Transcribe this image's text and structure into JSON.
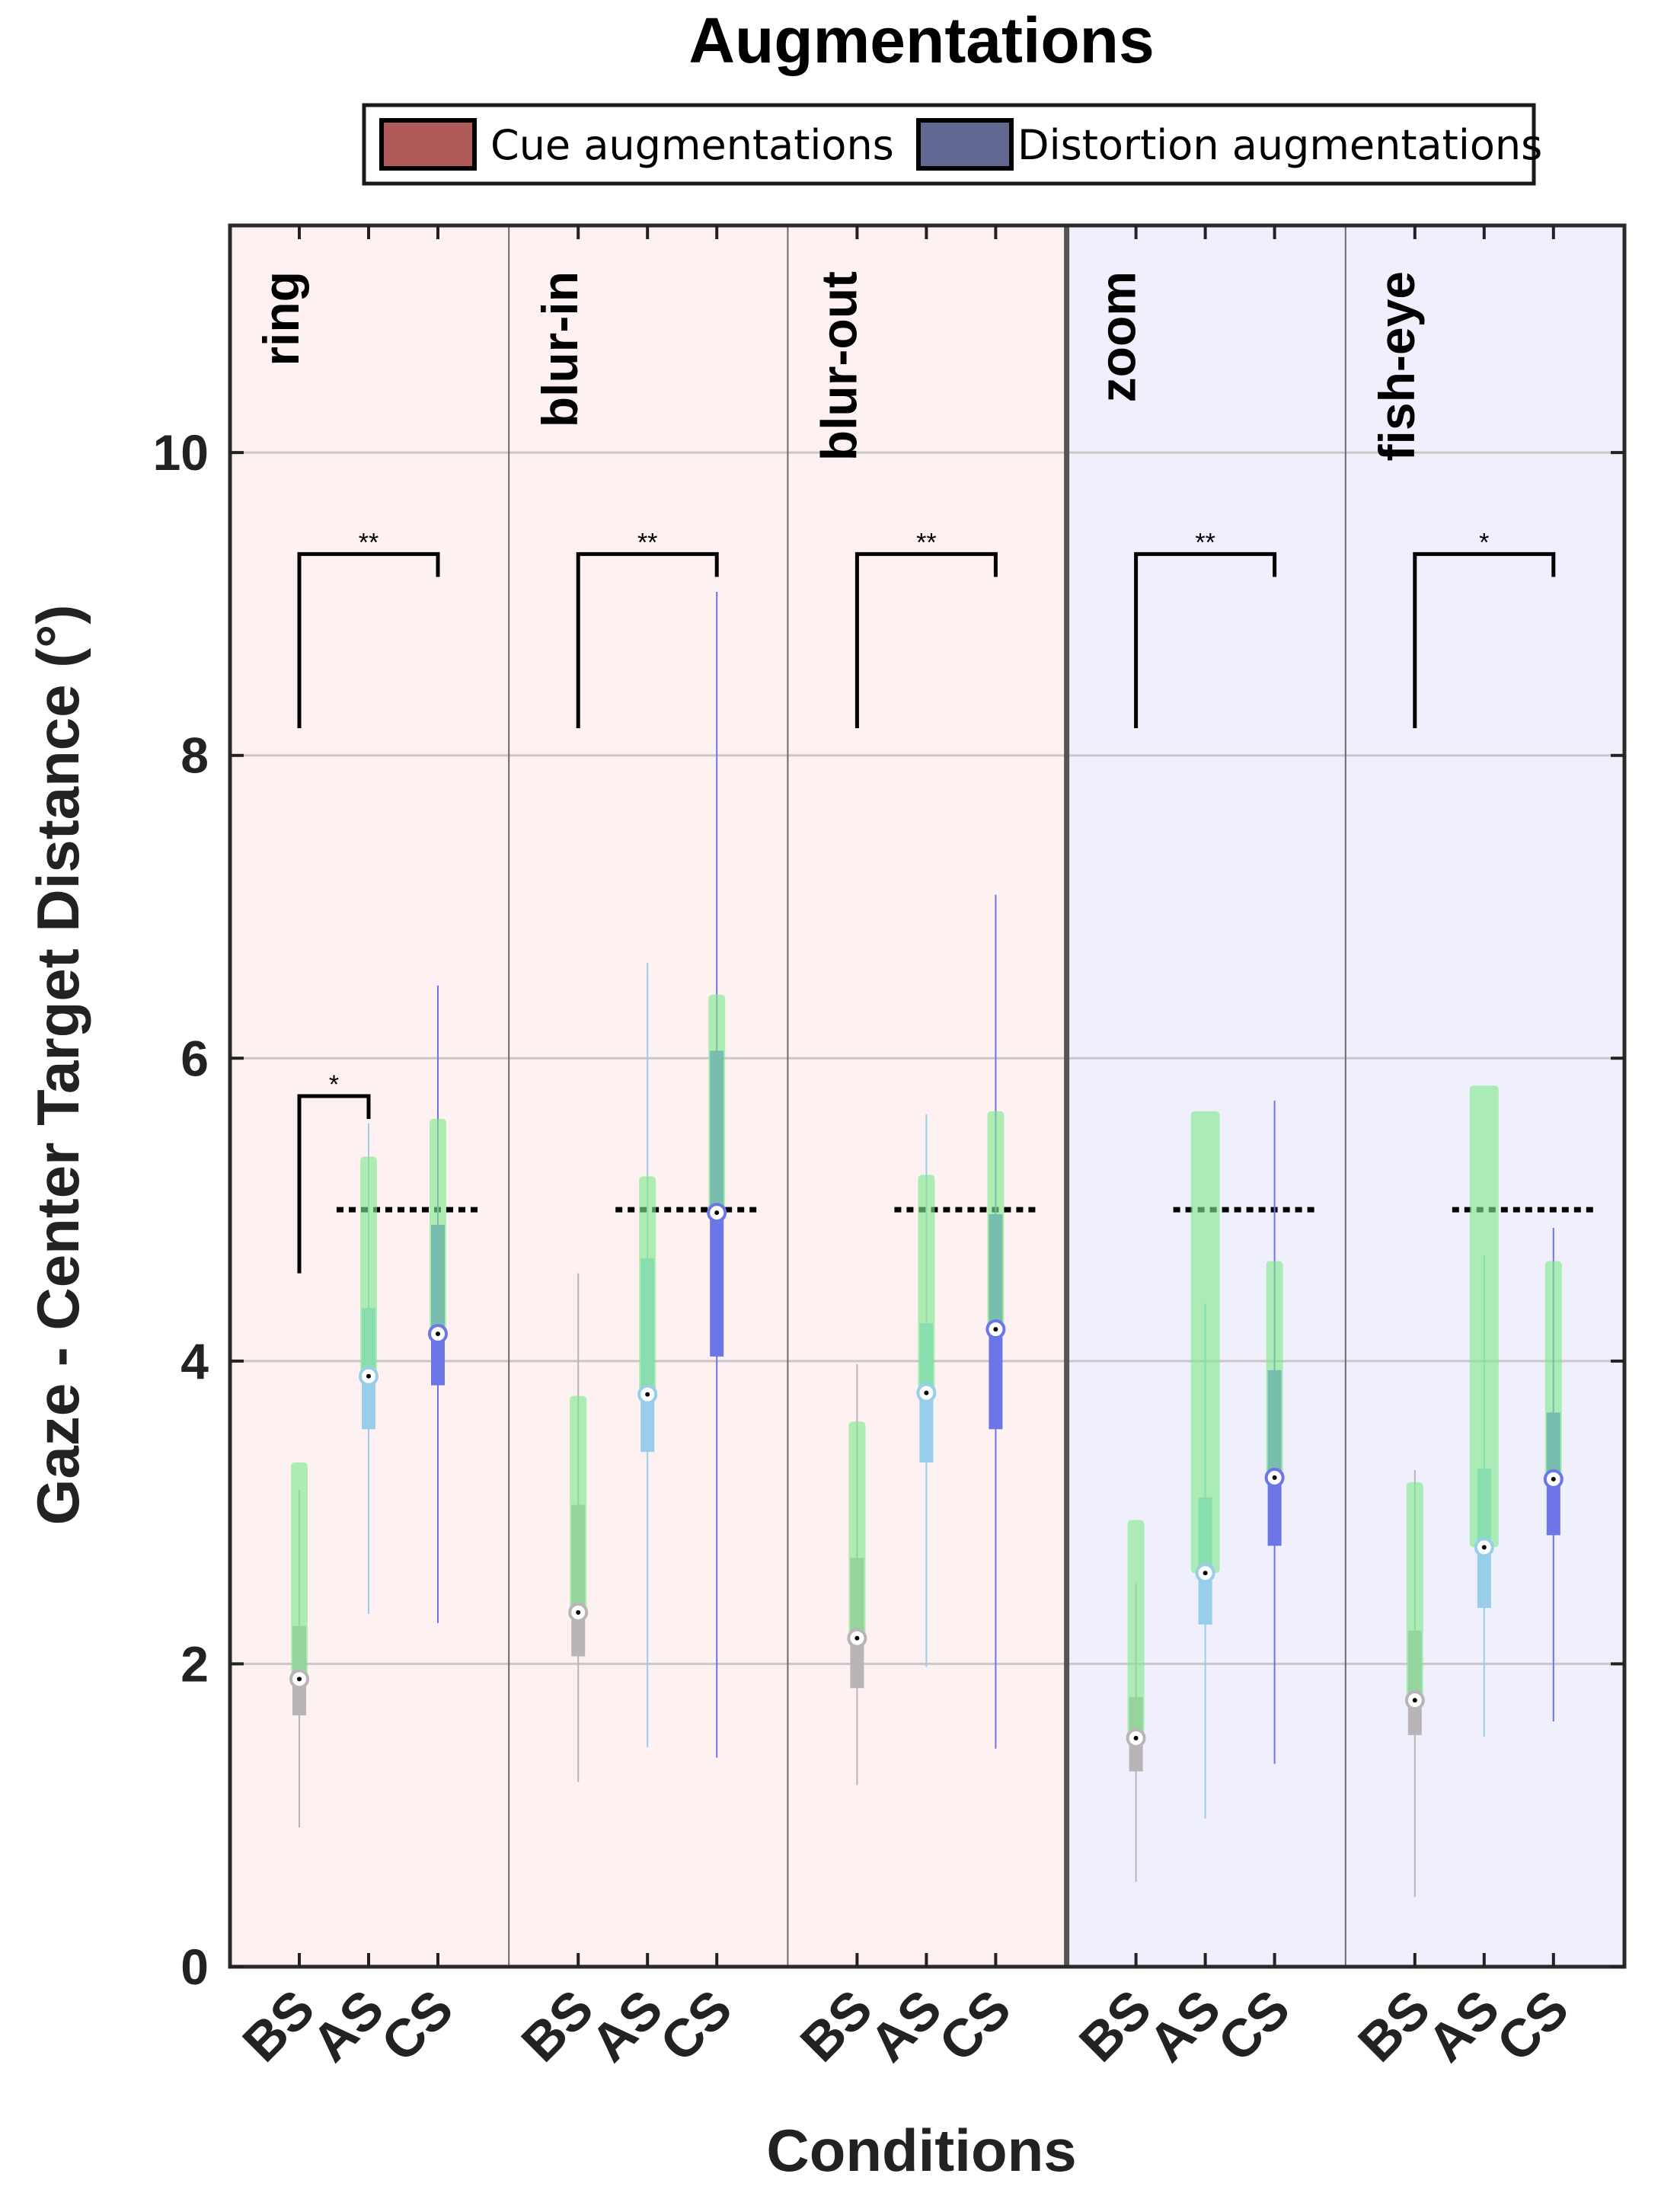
{
  "chart_data": {
    "type": "box",
    "title": "Augmentations",
    "xlabel": "Conditions",
    "ylabel": "Gaze - Center Target Distance (°)",
    "ylim": [
      0,
      11.5
    ],
    "yticks": [
      0,
      2,
      4,
      6,
      8,
      10
    ],
    "categories": [
      "BS",
      "AS",
      "CS"
    ],
    "legend": [
      {
        "label": "Cue augmentations",
        "color": "#b05a5a"
      },
      {
        "label": "Distortion augmentations",
        "color": "#626892"
      }
    ],
    "reference_line": 5.0,
    "colors": {
      "cue_bg": "#fdf1f1",
      "distortion_bg": "#f0f0fd",
      "BS": "#b9b4b8",
      "AS": "#98ceea",
      "CS": "#6c76e6",
      "green": "#7fe88a"
    },
    "panels": [
      {
        "name": "ring",
        "group": "cue",
        "boxes": [
          {
            "condition": "BS",
            "whisker_low": 0.92,
            "whisker_high": 3.15,
            "q1": 1.66,
            "q3": 2.25,
            "median": 1.9,
            "green_low": 1.9,
            "green_high": 3.33
          },
          {
            "condition": "AS",
            "whisker_low": 2.33,
            "whisker_high": 5.57,
            "q1": 3.55,
            "q3": 4.35,
            "median": 3.9,
            "green_low": 3.9,
            "green_high": 5.35
          },
          {
            "condition": "CS",
            "whisker_low": 2.27,
            "whisker_high": 6.48,
            "q1": 3.84,
            "q3": 4.9,
            "median": 4.18,
            "green_low": 4.18,
            "green_high": 5.6
          }
        ],
        "significance": [
          {
            "from": "BS",
            "to": "CS",
            "label": "**",
            "y": 9.33,
            "left_low": 8.18
          },
          {
            "from": "BS",
            "to": "AS",
            "label": "*",
            "y": 5.75,
            "left_low": 4.58
          }
        ]
      },
      {
        "name": "blur-in",
        "group": "cue",
        "boxes": [
          {
            "condition": "BS",
            "whisker_low": 1.22,
            "whisker_high": 4.58,
            "q1": 2.05,
            "q3": 3.05,
            "median": 2.34,
            "green_low": 2.34,
            "green_high": 3.77
          },
          {
            "condition": "AS",
            "whisker_low": 1.45,
            "whisker_high": 6.63,
            "q1": 3.4,
            "q3": 4.68,
            "median": 3.78,
            "green_low": 3.78,
            "green_high": 5.22
          },
          {
            "condition": "CS",
            "whisker_low": 1.38,
            "whisker_high": 9.08,
            "q1": 4.03,
            "q3": 6.05,
            "median": 4.98,
            "green_low": 4.98,
            "green_high": 6.42
          }
        ],
        "significance": [
          {
            "from": "BS",
            "to": "CS",
            "label": "**",
            "y": 9.33,
            "left_low": 8.18
          }
        ]
      },
      {
        "name": "blur-out",
        "group": "cue",
        "boxes": [
          {
            "condition": "BS",
            "whisker_low": 1.2,
            "whisker_high": 3.98,
            "q1": 1.84,
            "q3": 2.7,
            "median": 2.17,
            "green_low": 2.17,
            "green_high": 3.6
          },
          {
            "condition": "AS",
            "whisker_low": 1.98,
            "whisker_high": 5.63,
            "q1": 3.33,
            "q3": 4.25,
            "median": 3.79,
            "green_low": 3.79,
            "green_high": 5.23
          },
          {
            "condition": "CS",
            "whisker_low": 1.44,
            "whisker_high": 7.08,
            "q1": 3.55,
            "q3": 4.97,
            "median": 4.21,
            "green_low": 4.21,
            "green_high": 5.65
          }
        ],
        "significance": [
          {
            "from": "BS",
            "to": "CS",
            "label": "**",
            "y": 9.33,
            "left_low": 8.18
          }
        ]
      },
      {
        "name": "zoom",
        "group": "distortion",
        "boxes": [
          {
            "condition": "BS",
            "whisker_low": 0.56,
            "whisker_high": 2.53,
            "q1": 1.29,
            "q3": 1.78,
            "median": 1.51,
            "green_low": 1.51,
            "green_high": 2.95
          },
          {
            "condition": "AS",
            "whisker_low": 0.98,
            "whisker_high": 4.38,
            "q1": 2.26,
            "q3": 3.1,
            "median": 2.6,
            "green_low": 2.6,
            "green_high": 5.65
          },
          {
            "condition": "CS",
            "whisker_low": 1.34,
            "whisker_high": 5.72,
            "q1": 2.78,
            "q3": 3.94,
            "median": 3.23,
            "green_low": 3.23,
            "green_high": 4.66
          }
        ],
        "significance": [
          {
            "from": "BS",
            "to": "CS",
            "label": "**",
            "y": 9.33,
            "left_low": 8.18
          }
        ]
      },
      {
        "name": "fish-eye",
        "group": "distortion",
        "boxes": [
          {
            "condition": "BS",
            "whisker_low": 0.46,
            "whisker_high": 3.28,
            "q1": 1.53,
            "q3": 2.22,
            "median": 1.76,
            "green_low": 1.76,
            "green_high": 3.2
          },
          {
            "condition": "AS",
            "whisker_low": 1.52,
            "whisker_high": 4.7,
            "q1": 2.37,
            "q3": 3.29,
            "median": 2.77,
            "green_low": 2.77,
            "green_high": 5.82
          },
          {
            "condition": "CS",
            "whisker_low": 1.62,
            "whisker_high": 4.88,
            "q1": 2.85,
            "q3": 3.66,
            "median": 3.22,
            "green_low": 3.22,
            "green_high": 4.66
          }
        ],
        "significance": [
          {
            "from": "BS",
            "to": "CS",
            "label": "*",
            "y": 9.33,
            "left_low": 8.18
          }
        ]
      }
    ]
  }
}
